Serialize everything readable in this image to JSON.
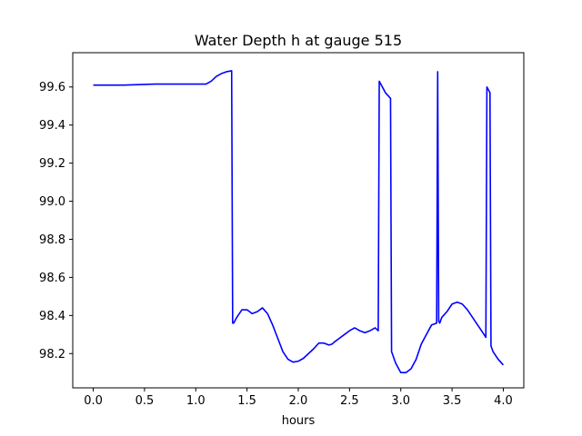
{
  "chart_data": {
    "type": "line",
    "title": "Water Depth h at gauge 515",
    "xlabel": "hours",
    "ylabel": "",
    "xlim": [
      -0.2,
      4.2
    ],
    "ylim": [
      98.02,
      99.78
    ],
    "x_ticks": [
      0.0,
      0.5,
      1.0,
      1.5,
      2.0,
      2.5,
      3.0,
      3.5,
      4.0
    ],
    "x_tick_labels": [
      "0.0",
      "0.5",
      "1.0",
      "1.5",
      "2.0",
      "2.5",
      "3.0",
      "3.5",
      "4.0"
    ],
    "y_ticks": [
      98.2,
      98.4,
      98.6,
      98.8,
      99.0,
      99.2,
      99.4,
      99.6
    ],
    "y_tick_labels": [
      "98.2",
      "98.4",
      "98.6",
      "98.8",
      "99.0",
      "99.2",
      "99.4",
      "99.6"
    ],
    "grid": false,
    "legend": "none",
    "series": [
      {
        "color": "#0000ff",
        "x": [
          0.0,
          0.3,
          0.6,
          0.9,
          1.1,
          1.15,
          1.2,
          1.25,
          1.3,
          1.35,
          1.36,
          1.37,
          1.4,
          1.45,
          1.5,
          1.55,
          1.6,
          1.65,
          1.7,
          1.75,
          1.8,
          1.85,
          1.9,
          1.95,
          2.0,
          2.05,
          2.1,
          2.15,
          2.2,
          2.25,
          2.3,
          2.33,
          2.35,
          2.4,
          2.45,
          2.5,
          2.55,
          2.6,
          2.65,
          2.7,
          2.75,
          2.78,
          2.79,
          2.8,
          2.85,
          2.9,
          2.91,
          2.95,
          3.0,
          3.05,
          3.1,
          3.15,
          3.2,
          3.25,
          3.3,
          3.35,
          3.36,
          3.37,
          3.38,
          3.4,
          3.45,
          3.5,
          3.55,
          3.6,
          3.65,
          3.7,
          3.75,
          3.8,
          3.83,
          3.84,
          3.87,
          3.88,
          3.9,
          3.95,
          4.0
        ],
        "y": [
          99.61,
          99.61,
          99.615,
          99.615,
          99.615,
          99.63,
          99.655,
          99.67,
          99.68,
          99.685,
          98.36,
          98.36,
          98.39,
          98.43,
          98.43,
          98.41,
          98.42,
          98.44,
          98.41,
          98.35,
          98.28,
          98.21,
          98.17,
          98.155,
          98.16,
          98.175,
          98.2,
          98.225,
          98.255,
          98.255,
          98.245,
          98.25,
          98.26,
          98.28,
          98.3,
          98.32,
          98.335,
          98.32,
          98.31,
          98.32,
          98.335,
          98.32,
          99.63,
          99.62,
          99.57,
          99.54,
          98.21,
          98.15,
          98.1,
          98.1,
          98.12,
          98.17,
          98.25,
          98.3,
          98.35,
          98.36,
          99.68,
          98.37,
          98.36,
          98.39,
          98.42,
          98.46,
          98.47,
          98.46,
          98.43,
          98.39,
          98.35,
          98.31,
          98.285,
          99.6,
          99.57,
          98.24,
          98.21,
          98.17,
          98.14
        ]
      }
    ]
  }
}
